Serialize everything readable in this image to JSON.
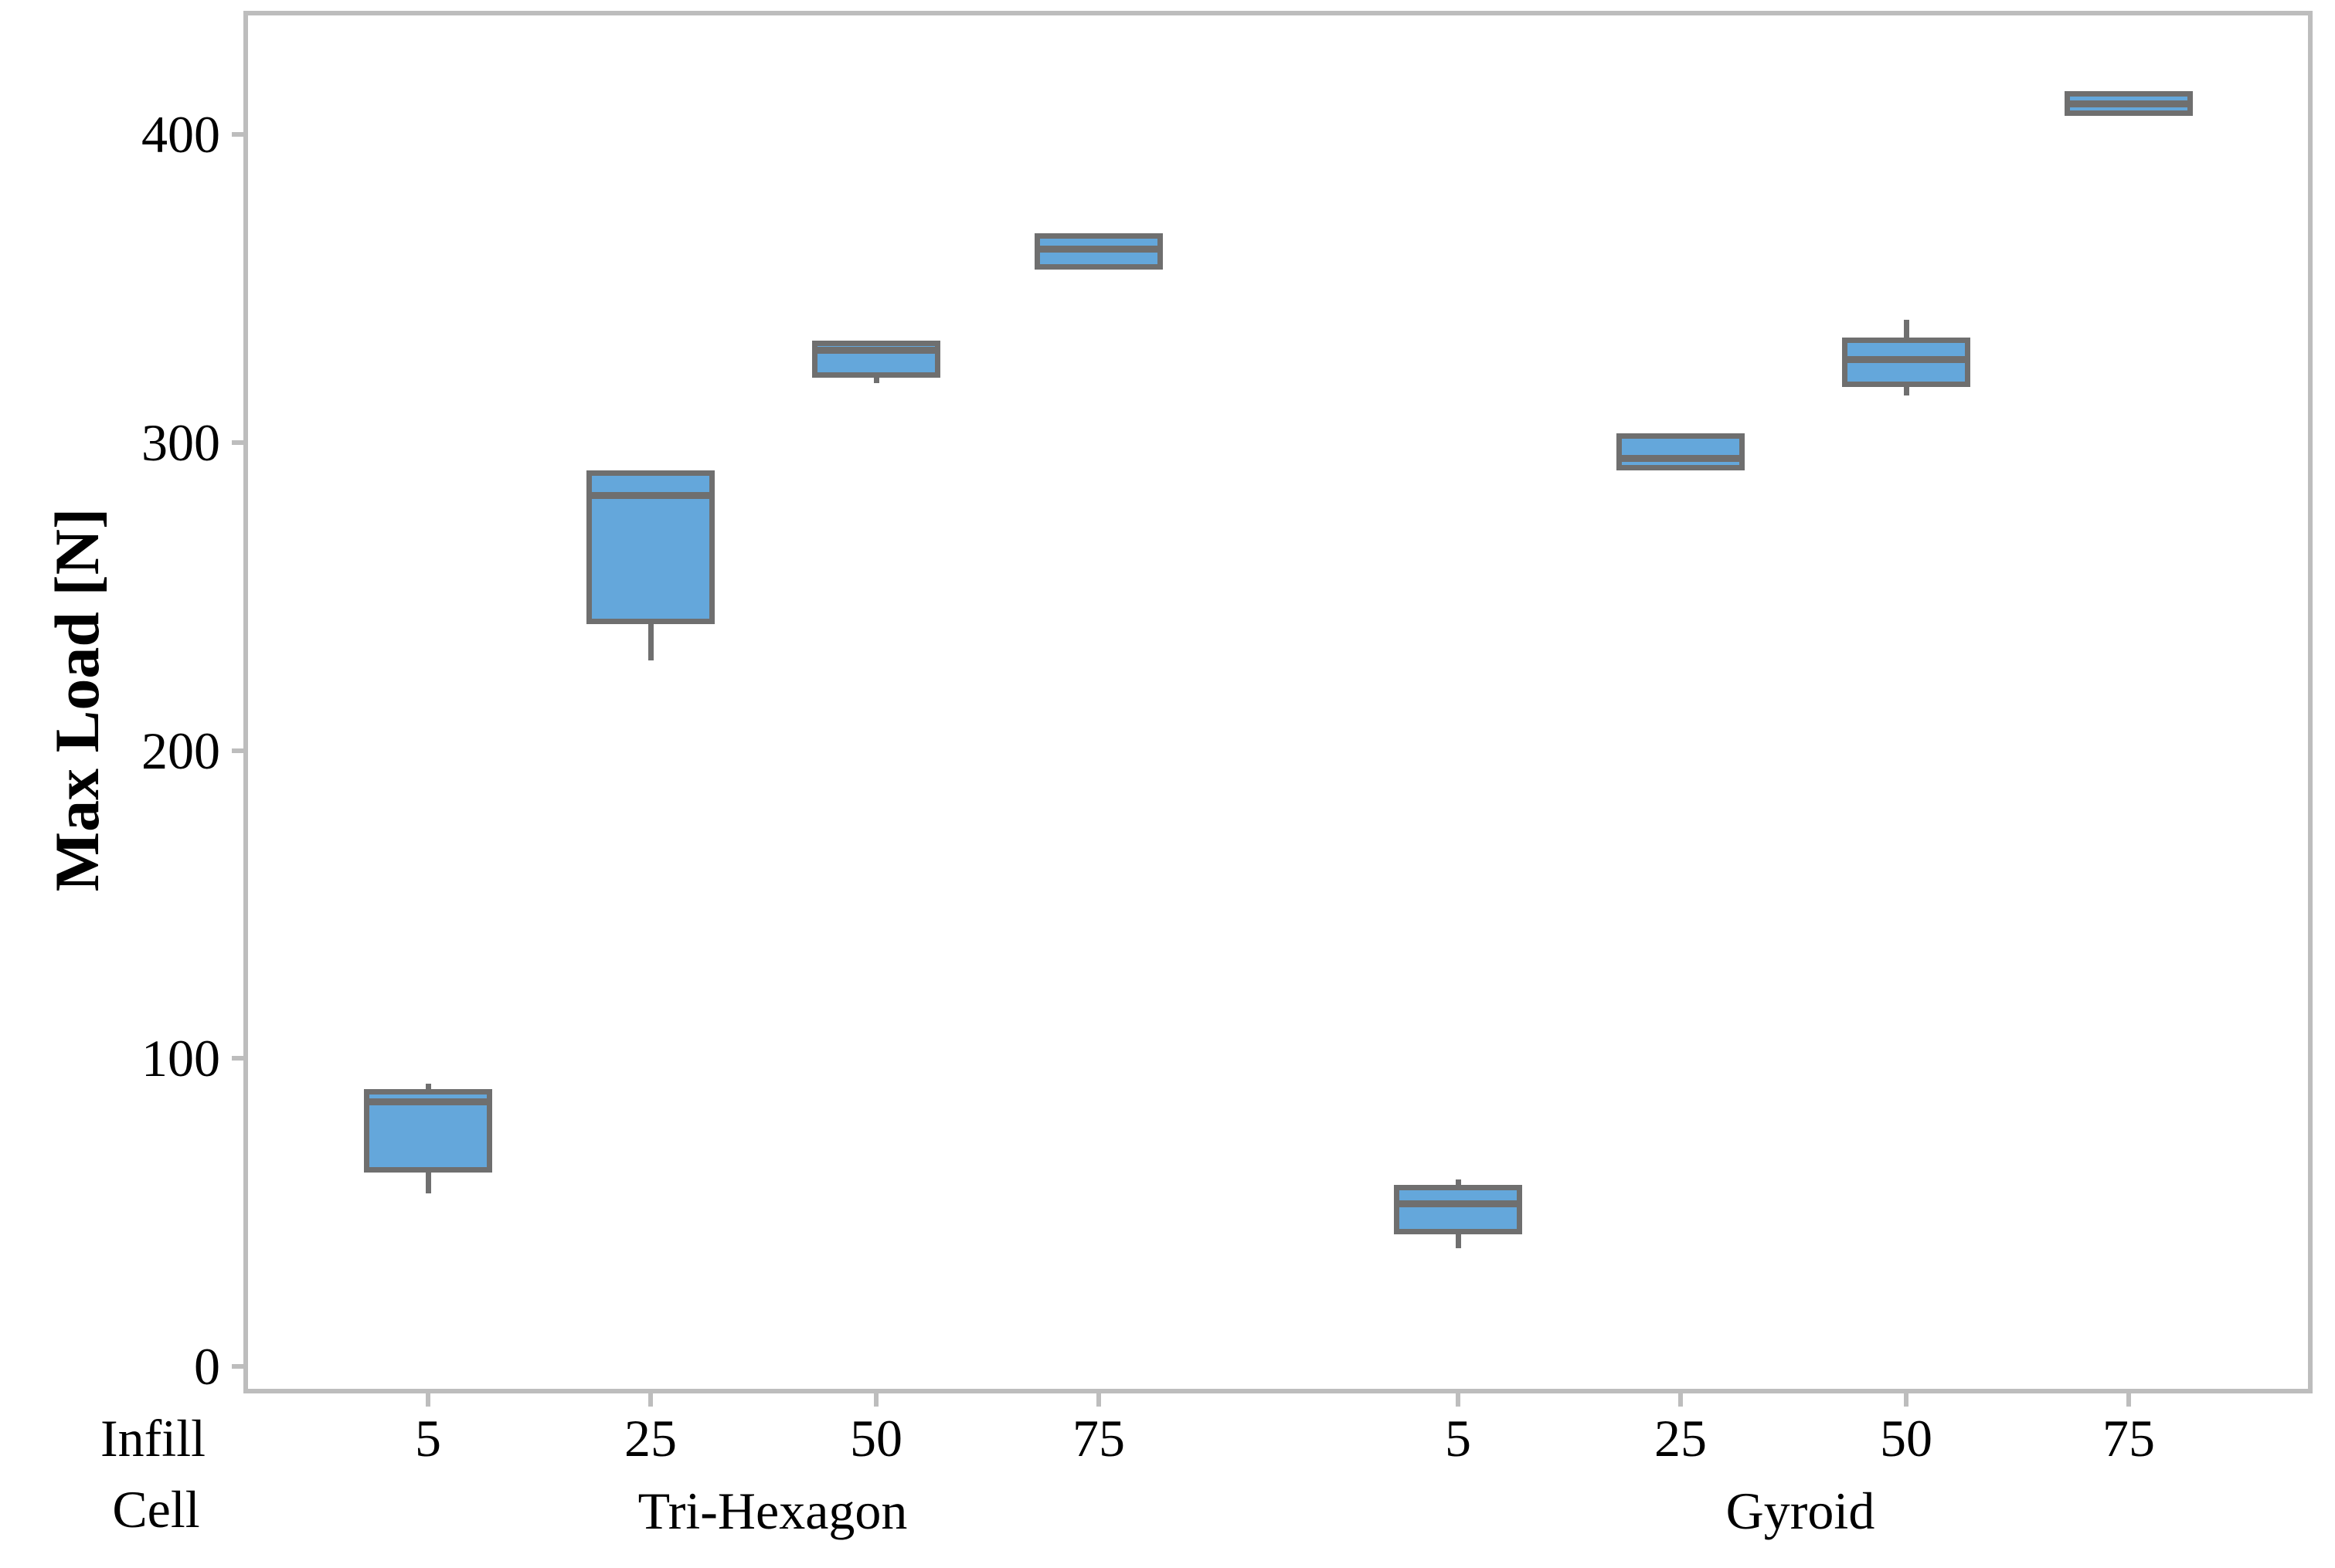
{
  "chart_data": {
    "type": "boxplot",
    "title": "",
    "ylabel": "Max Load [N]",
    "xlabel_rows": [
      "Infill",
      "Cell"
    ],
    "y_ticks": [
      0,
      100,
      200,
      300,
      400
    ],
    "ylim": [
      -8,
      439
    ],
    "grid": false,
    "legend": false,
    "box_fill": "#64a7db",
    "box_border": "#6f6f6f",
    "axis_color": "#bdbdbd",
    "text_color": "#000000",
    "groups": [
      {
        "name": "Tri-Hexagon",
        "boxes": [
          {
            "infill": "5",
            "min": 57,
            "q1": 64,
            "median": 86,
            "q3": 89,
            "max": 91
          },
          {
            "infill": "25",
            "min": 230,
            "q1": 242,
            "median": 283,
            "q3": 290,
            "max": 290
          },
          {
            "infill": "50",
            "min": 320,
            "q1": 322,
            "median": 330,
            "q3": 332,
            "max": 332
          },
          {
            "infill": "75",
            "min": 357,
            "q1": 357,
            "median": 363,
            "q3": 367,
            "max": 367
          }
        ]
      },
      {
        "name": "Gyroid",
        "boxes": [
          {
            "infill": "5",
            "min": 39,
            "q1": 44,
            "median": 53,
            "q3": 58,
            "max": 60
          },
          {
            "infill": "25",
            "min": 292,
            "q1": 292,
            "median": 295,
            "q3": 302,
            "max": 302
          },
          {
            "infill": "50",
            "min": 316,
            "q1": 319,
            "median": 327,
            "q3": 333,
            "max": 339
          },
          {
            "infill": "75",
            "min": 407,
            "q1": 407,
            "median": 410,
            "q3": 413,
            "max": 413
          }
        ]
      }
    ]
  }
}
